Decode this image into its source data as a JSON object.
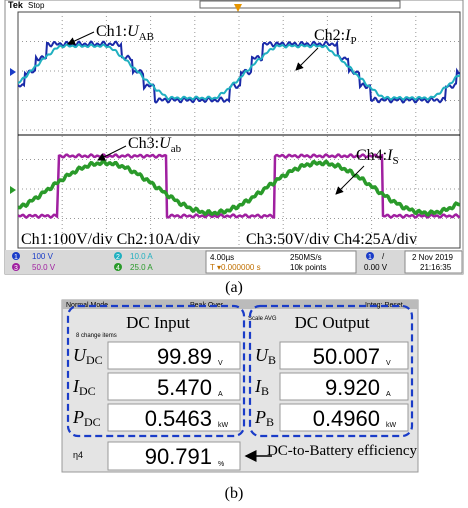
{
  "scope": {
    "brand": "Tek",
    "status": "Stop",
    "labels": [
      {
        "prefix": "Ch1:",
        "symbol": "U",
        "sub": "AB"
      },
      {
        "prefix": "Ch2:",
        "symbol": "I",
        "sub": "P"
      },
      {
        "prefix": "Ch3:",
        "symbol": "U",
        "sub": "ab"
      },
      {
        "prefix": "Ch4:",
        "symbol": "I",
        "sub": "S"
      }
    ],
    "scale_left": "Ch1:100V/div Ch2:10A/div",
    "scale_right": "Ch3:50V/div Ch4:25A/div",
    "channels": [
      {
        "num": "1",
        "scale": "100 V"
      },
      {
        "num": "2",
        "scale": "10.0 A"
      },
      {
        "num": "3",
        "scale": "50.0 V"
      },
      {
        "num": "4",
        "scale": "25.0 A"
      }
    ],
    "timebase": "4.00µs",
    "trigger_pos": "T ▾0.000000 s",
    "sample_rate": "250MS/s",
    "record": "10k points",
    "trig_ch": "1",
    "trig_slope": "/",
    "trig_level": "0.00 V",
    "date": "2 Nov 2019",
    "time": "21:16:35",
    "caption": "(a)"
  },
  "meter": {
    "mode": "Normal Mode",
    "peak": "Peak Over",
    "integ": "Integ: Reset",
    "scaling": "Scale AVG",
    "items": "8 change items",
    "input_title": "DC Input",
    "output_title": "DC Output",
    "input": [
      {
        "symbol": "U",
        "sub": "DC",
        "value": "99.89",
        "unit": "V"
      },
      {
        "symbol": "I",
        "sub": "DC",
        "value": "5.470",
        "unit": "A"
      },
      {
        "symbol": "P",
        "sub": "DC",
        "value": "0.5463",
        "unit": "kW"
      }
    ],
    "output": [
      {
        "symbol": "U",
        "sub": "B",
        "value": "50.007",
        "unit": "V"
      },
      {
        "symbol": "I",
        "sub": "B",
        "value": "9.920",
        "unit": "A"
      },
      {
        "symbol": "P",
        "sub": "B",
        "value": "0.4960",
        "unit": "kW"
      }
    ],
    "efficiency": {
      "symbol": "η4",
      "value": "90.791",
      "unit": "%"
    },
    "efficiency_note": "DC-to-Battery efficiency",
    "caption": "(b)"
  }
}
